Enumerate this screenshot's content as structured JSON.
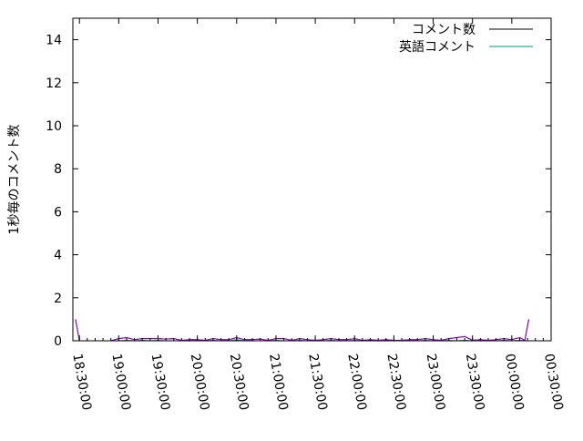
{
  "chart_data": {
    "type": "line",
    "title": "",
    "xlabel": "",
    "ylabel": "1秒毎のコメント数",
    "xlim": [
      "18:25:00",
      "00:30:00"
    ],
    "ylim": [
      0,
      15
    ],
    "grid": false,
    "legend_placement": "top-right",
    "x_ticks": [
      "18:30:00",
      "19:00:00",
      "19:30:00",
      "20:00:00",
      "20:30:00",
      "21:00:00",
      "21:30:00",
      "22:00:00",
      "22:30:00",
      "23:00:00",
      "23:30:00",
      "00:00:00",
      "00:30:00"
    ],
    "y_ticks": [
      "0",
      "2",
      "4",
      "6",
      "8",
      "10",
      "12",
      "14"
    ],
    "x": [
      "18:27:00",
      "18:30:00",
      "18:36:00",
      "18:42:00",
      "18:48:00",
      "18:54:00",
      "19:00:00",
      "19:06:00",
      "19:12:00",
      "19:18:00",
      "19:24:00",
      "19:30:00",
      "19:36:00",
      "19:42:00",
      "19:48:00",
      "19:54:00",
      "20:00:00",
      "20:06:00",
      "20:12:00",
      "20:18:00",
      "20:24:00",
      "20:30:00",
      "20:36:00",
      "20:42:00",
      "20:48:00",
      "20:54:00",
      "21:00:00",
      "21:06:00",
      "21:12:00",
      "21:18:00",
      "21:24:00",
      "21:30:00",
      "21:36:00",
      "21:42:00",
      "21:48:00",
      "21:54:00",
      "22:00:00",
      "22:06:00",
      "22:12:00",
      "22:18:00",
      "22:24:00",
      "22:30:00",
      "22:36:00",
      "22:42:00",
      "22:48:00",
      "22:54:00",
      "23:00:00",
      "23:06:00",
      "23:12:00",
      "23:18:00",
      "23:24:00",
      "23:30:00",
      "23:36:00",
      "23:42:00",
      "23:48:00",
      "23:54:00",
      "00:00:00",
      "00:06:00",
      "00:10:00",
      "00:13:00"
    ],
    "series": [
      {
        "name": "コメント数",
        "color": "#000000",
        "values": [
          1.0,
          0,
          0,
          0,
          0,
          0,
          0.1,
          0.15,
          0.05,
          0.1,
          0.1,
          0.1,
          0.08,
          0.1,
          0.02,
          0.05,
          0.05,
          0.02,
          0.1,
          0.05,
          0.05,
          0.15,
          0.05,
          0.05,
          0.08,
          0.02,
          0.1,
          0.1,
          0.02,
          0.1,
          0.05,
          0.02,
          0.05,
          0.1,
          0.05,
          0.05,
          0.1,
          0.02,
          0.05,
          0.02,
          0.05,
          0.02,
          0.02,
          0.05,
          0.05,
          0.1,
          0.05,
          0.02,
          0.1,
          0.15,
          0.2,
          0.02,
          0.05,
          0.02,
          0.05,
          0.1,
          0.05,
          0.15,
          0.02,
          1.0
        ]
      },
      {
        "name": "英語コメント",
        "color": "#009e73",
        "values": [
          0,
          0,
          0,
          0,
          0,
          0,
          0,
          0.02,
          0,
          0.02,
          0,
          0.02,
          0,
          0,
          0,
          0,
          0,
          0,
          0.02,
          0,
          0,
          0.05,
          0,
          0,
          0,
          0,
          0.02,
          0,
          0,
          0.02,
          0,
          0,
          0,
          0.02,
          0,
          0,
          0.02,
          0,
          0,
          0,
          0,
          0,
          0,
          0,
          0,
          0.02,
          0,
          0,
          0.02,
          0,
          0.02,
          0,
          0,
          0,
          0,
          0.02,
          0,
          0.02,
          0,
          0
        ]
      },
      {
        "color": "#9400d3",
        "values": [
          1.0,
          0,
          0,
          0,
          0,
          0,
          0.1,
          0.15,
          0.05,
          0.1,
          0.1,
          0.1,
          0.08,
          0.1,
          0.02,
          0.05,
          0.05,
          0.02,
          0.1,
          0.05,
          0.05,
          0.15,
          0.05,
          0.05,
          0.08,
          0.02,
          0.1,
          0.1,
          0.02,
          0.1,
          0.05,
          0.02,
          0.05,
          0.1,
          0.05,
          0.05,
          0.1,
          0.02,
          0.05,
          0.02,
          0.05,
          0.02,
          0.02,
          0.05,
          0.05,
          0.1,
          0.05,
          0.02,
          0.1,
          0.15,
          0.2,
          0.02,
          0.05,
          0.02,
          0.05,
          0.1,
          0.05,
          0.15,
          0.02,
          1.0
        ]
      }
    ]
  }
}
